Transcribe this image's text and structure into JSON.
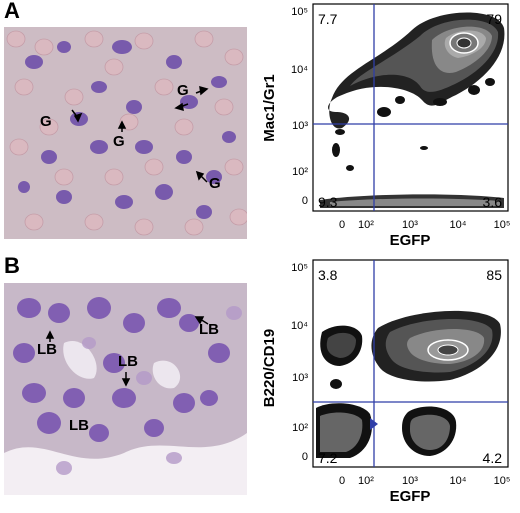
{
  "panel_a": {
    "letter": "A",
    "micro_labels": [
      "G",
      "G",
      "G",
      "G"
    ],
    "flow": {
      "ylabel": "Mac1/Gr1",
      "xlabel": "EGFP",
      "quadrants": {
        "ul": "7.7",
        "ur": "79",
        "ll": "9.3",
        "lr": "3.6"
      },
      "x_ticks": [
        "0",
        "10²",
        "10³",
        "10⁴",
        "10⁵"
      ],
      "y_ticks": [
        "10⁵",
        "10⁴",
        "10³",
        "10²",
        "0"
      ]
    }
  },
  "panel_b": {
    "letter": "B",
    "micro_labels": [
      "LB",
      "LB",
      "LB",
      "LB"
    ],
    "flow": {
      "ylabel": "B220/CD19",
      "xlabel": "EGFP",
      "quadrants": {
        "ul": "3.8",
        "ur": "85",
        "ll": "7.2",
        "lr": "4.2"
      },
      "x_ticks": [
        "0",
        "10²",
        "10³",
        "10⁴",
        "10⁵"
      ],
      "y_ticks": [
        "10⁵",
        "10⁴",
        "10³",
        "10²",
        "0"
      ]
    }
  },
  "colors": {
    "gate_line": "#2f3ea8",
    "stain": "#6a4aa8",
    "rbc": "#d9b7bf"
  }
}
